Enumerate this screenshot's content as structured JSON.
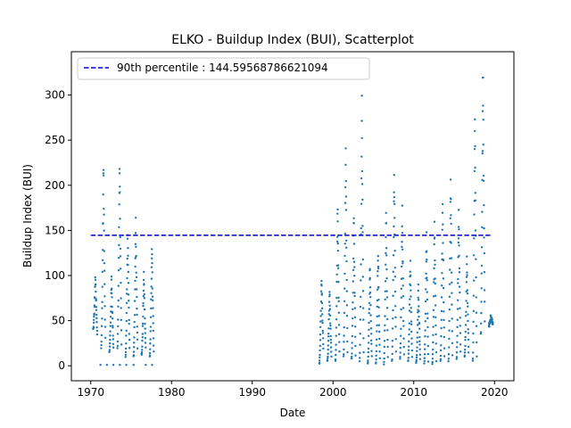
{
  "chart_data": {
    "type": "scatter",
    "title": "ELKO - Buildup Index (BUI), Scatterplot",
    "xlabel": "Date",
    "ylabel": "Buildup Index (BUI)",
    "xlim": [
      1967.6,
      2022.4
    ],
    "ylim": [
      -16.6,
      348.0
    ],
    "x_ticks": [
      1970,
      1980,
      1990,
      2000,
      2010,
      2020
    ],
    "y_ticks": [
      0,
      50,
      100,
      150,
      200,
      250,
      300
    ],
    "point_color": "#1f77b4",
    "reference_line": {
      "label": "90th percentile : 144.59568786621094",
      "value": 144.59568786621094,
      "color": "#0000cd",
      "style": "dashed",
      "x_range": [
        1970.0,
        2019.5
      ]
    },
    "legend_position": "upper-left",
    "season_peaks": [
      {
        "year": 1970,
        "start_value": 40,
        "peak": 100,
        "end_value": 35
      },
      {
        "year": 1971,
        "start_value": 20,
        "peak": 225,
        "end_value": 30
      },
      {
        "year": 1972,
        "start_value": 15,
        "peak": 100,
        "end_value": 20
      },
      {
        "year": 1973,
        "start_value": 20,
        "peak": 228,
        "end_value": 25
      },
      {
        "year": 1974,
        "start_value": 10,
        "peak": 152,
        "end_value": 20
      },
      {
        "year": 1975,
        "start_value": 10,
        "peak": 158,
        "end_value": 20
      },
      {
        "year": 1976,
        "start_value": 12,
        "peak": 106,
        "end_value": 20
      },
      {
        "year": 1977,
        "start_value": 10,
        "peak": 136,
        "end_value": 15
      },
      {
        "year": 1998,
        "start_value": 2,
        "peak": 100,
        "end_value": 20
      },
      {
        "year": 1999,
        "start_value": 5,
        "peak": 85,
        "end_value": 10
      },
      {
        "year": 2000,
        "start_value": 5,
        "peak": 180,
        "end_value": 15
      },
      {
        "year": 2001,
        "start_value": 10,
        "peak": 233,
        "end_value": 15
      },
      {
        "year": 2002,
        "start_value": 8,
        "peak": 172,
        "end_value": 12
      },
      {
        "year": 2003,
        "start_value": 5,
        "peak": 287,
        "end_value": 15
      },
      {
        "year": 2004,
        "start_value": 2,
        "peak": 115,
        "end_value": 10
      },
      {
        "year": 2005,
        "start_value": 2,
        "peak": 130,
        "end_value": 8
      },
      {
        "year": 2006,
        "start_value": 2,
        "peak": 172,
        "end_value": 10
      },
      {
        "year": 2007,
        "start_value": 5,
        "peak": 225,
        "end_value": 15
      },
      {
        "year": 2008,
        "start_value": 8,
        "peak": 170,
        "end_value": 12
      },
      {
        "year": 2009,
        "start_value": 5,
        "peak": 117,
        "end_value": 10
      },
      {
        "year": 2010,
        "start_value": 3,
        "peak": 88,
        "end_value": 8
      },
      {
        "year": 2011,
        "start_value": 3,
        "peak": 145,
        "end_value": 5
      },
      {
        "year": 2012,
        "start_value": 2,
        "peak": 157,
        "end_value": 5
      },
      {
        "year": 2013,
        "start_value": 5,
        "peak": 176,
        "end_value": 10
      },
      {
        "year": 2014,
        "start_value": 5,
        "peak": 217,
        "end_value": 12
      },
      {
        "year": 2015,
        "start_value": 8,
        "peak": 176,
        "end_value": 15
      },
      {
        "year": 2016,
        "start_value": 10,
        "peak": 120,
        "end_value": 15
      },
      {
        "year": 2017,
        "start_value": 5,
        "peak": 287,
        "end_value": 10
      },
      {
        "year": 2018,
        "start_value": 35,
        "peak": 331,
        "end_value": 50
      },
      {
        "year": 2019,
        "start_value": 45,
        "peak": 57,
        "end_value": 45
      }
    ],
    "near_zero_points": [
      [
        1971.2,
        1
      ],
      [
        1972.0,
        1
      ],
      [
        1972.8,
        1
      ],
      [
        1973.6,
        1
      ],
      [
        1974.4,
        1
      ],
      [
        1975.3,
        1
      ],
      [
        1976.8,
        1
      ],
      [
        1977.6,
        1
      ]
    ]
  }
}
